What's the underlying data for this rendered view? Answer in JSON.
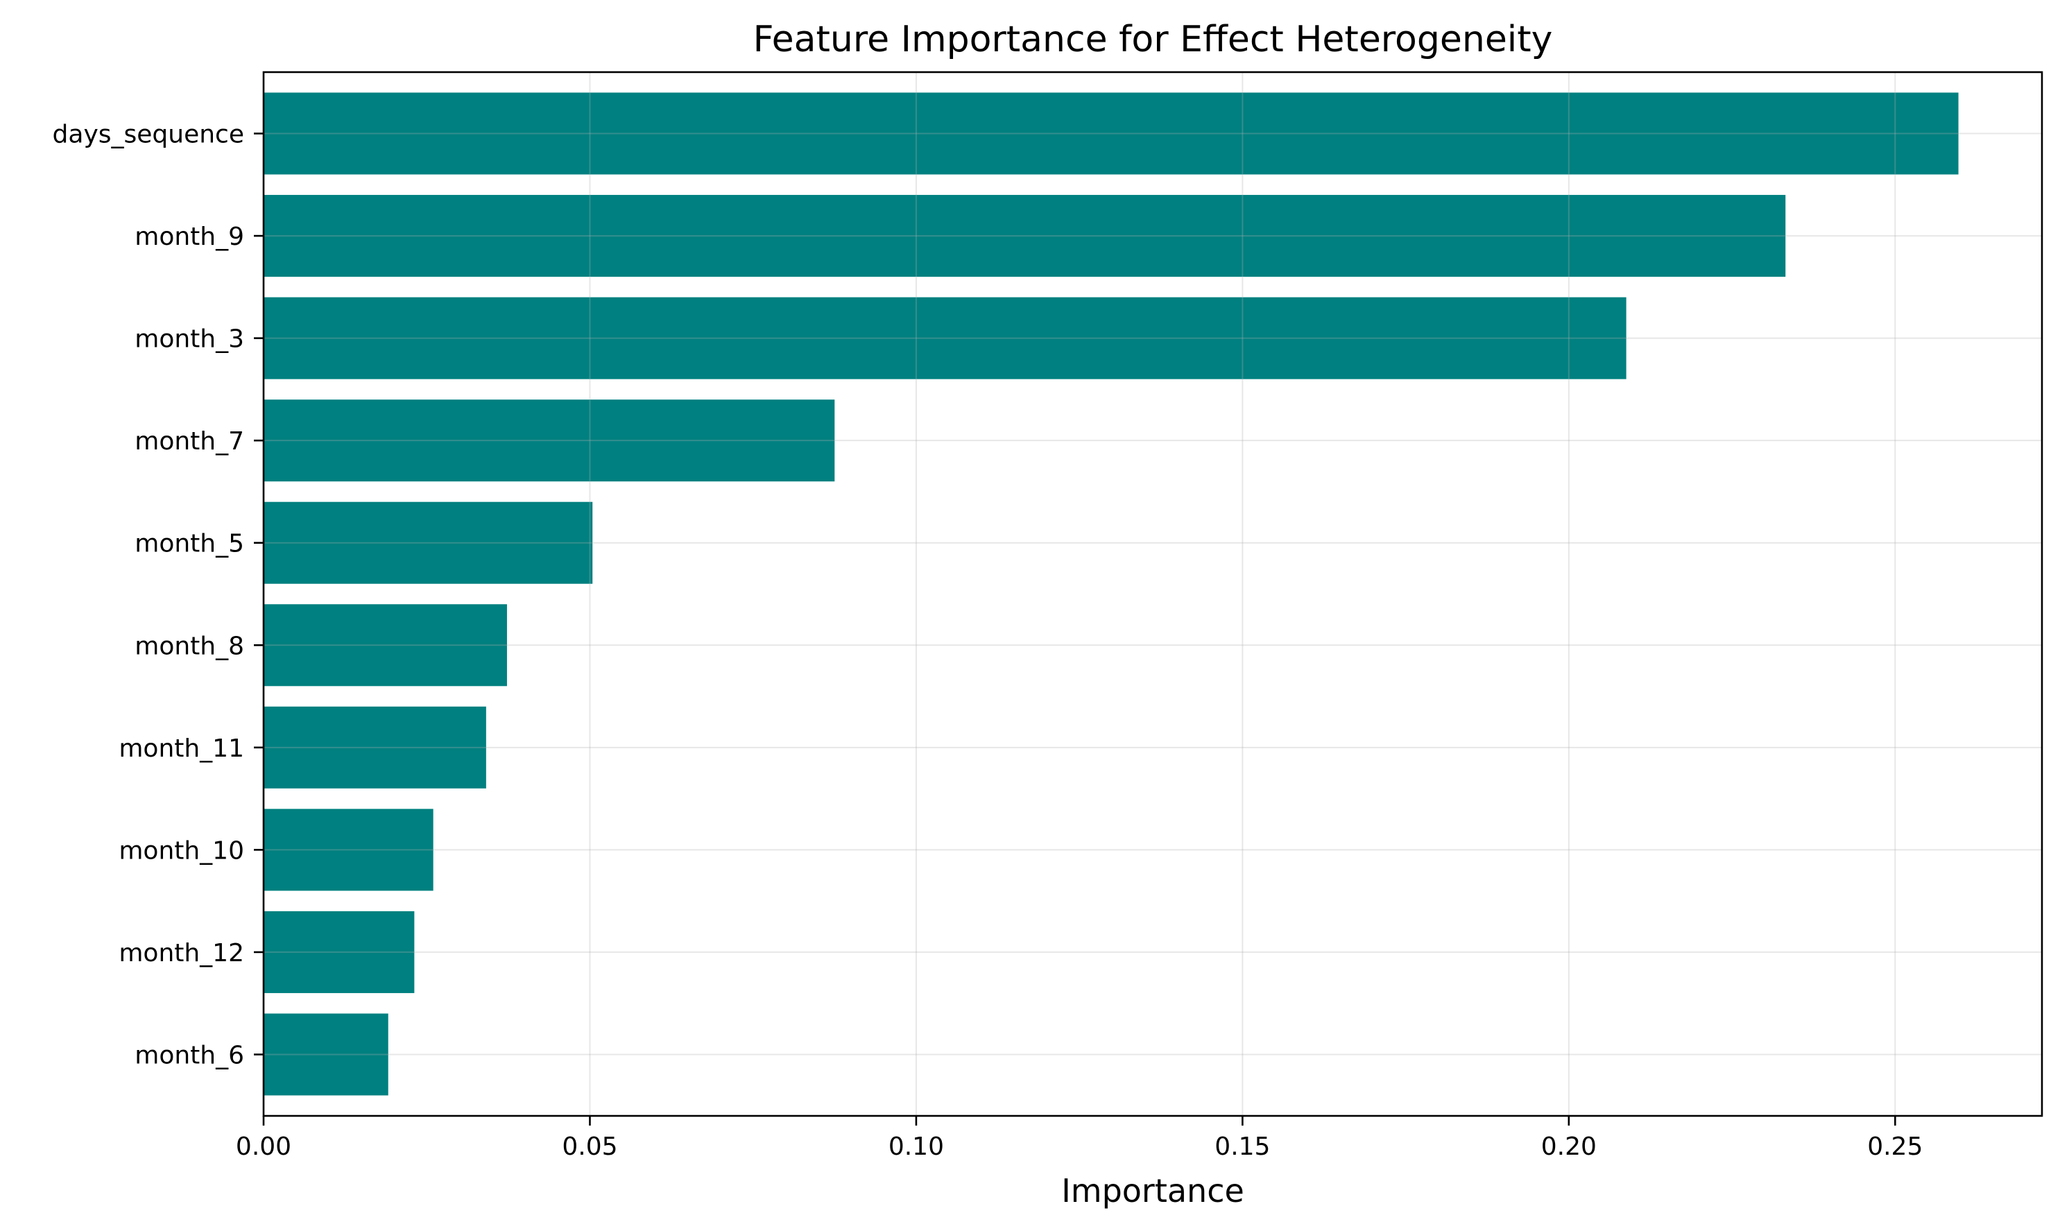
{
  "chart_data": {
    "type": "bar",
    "orientation": "horizontal",
    "title": "Feature Importance for Effect Heterogeneity",
    "xlabel": "Importance",
    "ylabel": "",
    "categories": [
      "days_sequence",
      "month_9",
      "month_3",
      "month_7",
      "month_5",
      "month_8",
      "month_11",
      "month_10",
      "month_12",
      "month_6"
    ],
    "values": [
      0.2597,
      0.2332,
      0.2088,
      0.0875,
      0.0504,
      0.0373,
      0.0341,
      0.026,
      0.0231,
      0.0191
    ],
    "xlim": [
      0,
      0.2725
    ],
    "xticks": [
      0.0,
      0.05,
      0.1,
      0.15,
      0.2,
      0.25
    ],
    "xtick_labels": [
      "0.00",
      "0.05",
      "0.10",
      "0.15",
      "0.20",
      "0.25"
    ],
    "bar_color": "#008080",
    "grid": true,
    "legend": null
  }
}
